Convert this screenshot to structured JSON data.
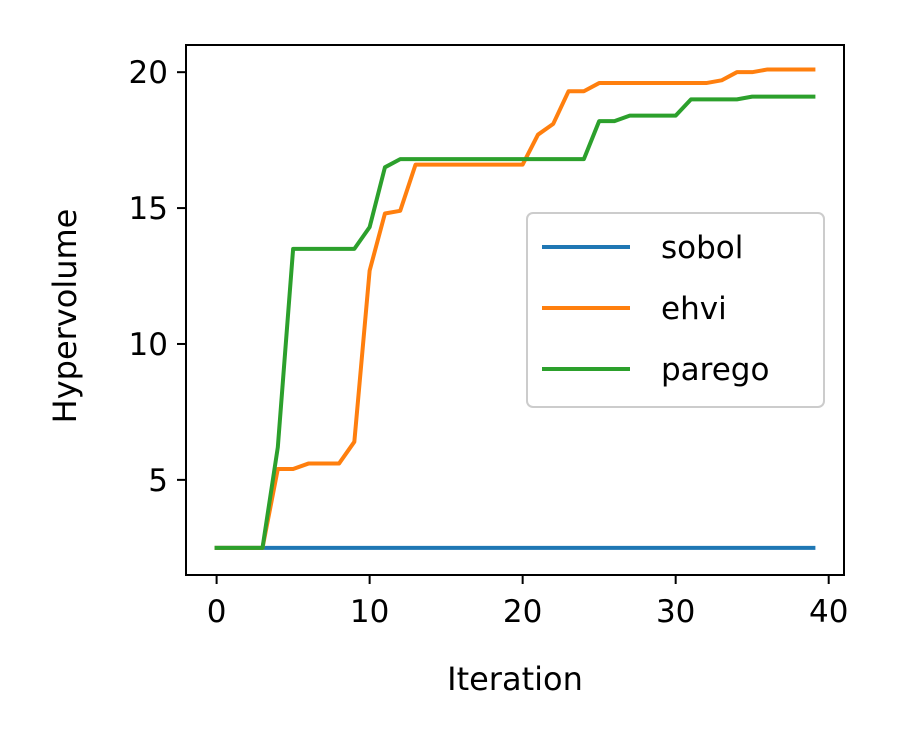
{
  "chart_data": {
    "type": "line",
    "title": "",
    "xlabel": "Iteration",
    "ylabel": "Hypervolume",
    "xlim": [
      -2,
      41
    ],
    "ylim": [
      1.5,
      21
    ],
    "xticks": [
      0,
      10,
      20,
      30,
      40
    ],
    "yticks": [
      5,
      10,
      15,
      20
    ],
    "legend_position": "center-right",
    "grid": false,
    "x": [
      0,
      1,
      2,
      3,
      4,
      5,
      6,
      7,
      8,
      9,
      10,
      11,
      12,
      13,
      14,
      15,
      16,
      17,
      18,
      19,
      20,
      21,
      22,
      23,
      24,
      25,
      26,
      27,
      28,
      29,
      30,
      31,
      32,
      33,
      34,
      35,
      36,
      37,
      38,
      39
    ],
    "series": [
      {
        "name": "sobol",
        "color": "#1f77b4",
        "values": [
          2.5,
          2.5,
          2.5,
          2.5,
          2.5,
          2.5,
          2.5,
          2.5,
          2.5,
          2.5,
          2.5,
          2.5,
          2.5,
          2.5,
          2.5,
          2.5,
          2.5,
          2.5,
          2.5,
          2.5,
          2.5,
          2.5,
          2.5,
          2.5,
          2.5,
          2.5,
          2.5,
          2.5,
          2.5,
          2.5,
          2.5,
          2.5,
          2.5,
          2.5,
          2.5,
          2.5,
          2.5,
          2.5,
          2.5,
          2.5
        ]
      },
      {
        "name": "ehvi",
        "color": "#ff7f0e",
        "values": [
          2.5,
          2.5,
          2.5,
          2.5,
          5.4,
          5.4,
          5.6,
          5.6,
          5.6,
          6.4,
          12.7,
          14.8,
          14.9,
          16.6,
          16.6,
          16.6,
          16.6,
          16.6,
          16.6,
          16.6,
          16.6,
          17.7,
          18.1,
          19.3,
          19.3,
          19.6,
          19.6,
          19.6,
          19.6,
          19.6,
          19.6,
          19.6,
          19.6,
          19.7,
          20.0,
          20.0,
          20.1,
          20.1,
          20.1,
          20.1
        ]
      },
      {
        "name": "parego",
        "color": "#2ca02c",
        "values": [
          2.5,
          2.5,
          2.5,
          2.5,
          6.2,
          13.5,
          13.5,
          13.5,
          13.5,
          13.5,
          14.3,
          16.5,
          16.8,
          16.8,
          16.8,
          16.8,
          16.8,
          16.8,
          16.8,
          16.8,
          16.8,
          16.8,
          16.8,
          16.8,
          16.8,
          18.2,
          18.2,
          18.4,
          18.4,
          18.4,
          18.4,
          19.0,
          19.0,
          19.0,
          19.0,
          19.1,
          19.1,
          19.1,
          19.1,
          19.1
        ]
      }
    ]
  }
}
